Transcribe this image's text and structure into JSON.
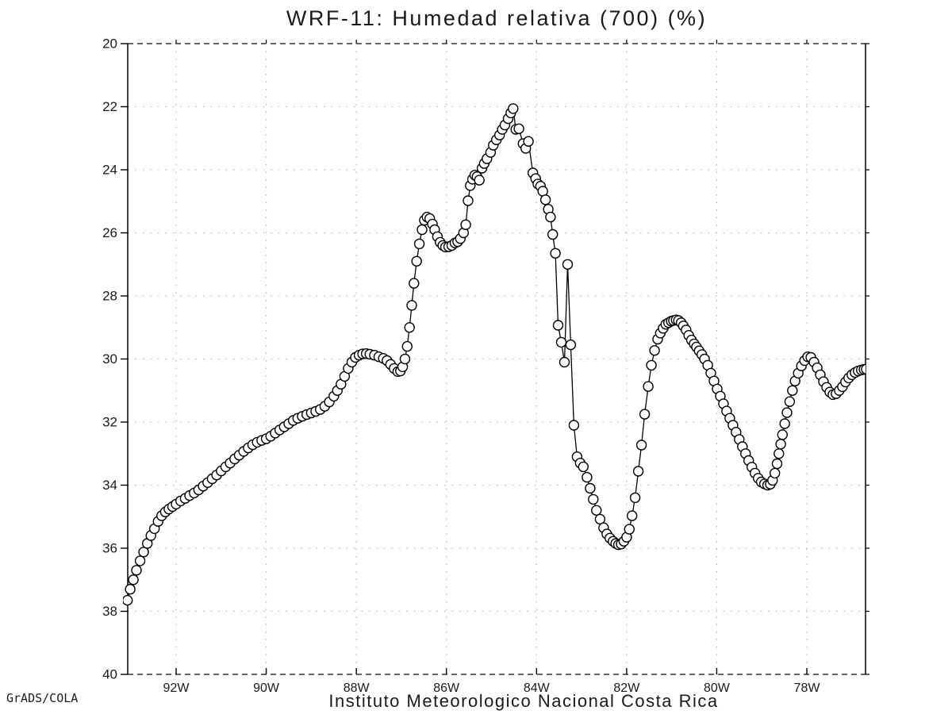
{
  "title": "WRF-11: Humedad relativa (700) (%)",
  "footer": "Instituto Meteorologico Nacional Costa Rica",
  "watermark": "GrADS/COLA",
  "colors": {
    "background": "#ffffff",
    "line": "#000000",
    "marker_fill": "#ffffff",
    "grid_dots": "#b0b0b0",
    "boundary_dash": "#333333",
    "text": "#1a1a1a"
  },
  "chart_data": {
    "type": "line",
    "marker": "open-circle",
    "title": "WRF-11: Humedad relativa (700) (%)",
    "xlabel": "",
    "ylabel": "",
    "x_axis": {
      "unit": "longitude (degrees West)",
      "tick_labels": [
        "92W",
        "90W",
        "88W",
        "86W",
        "84W",
        "82W",
        "80W",
        "78W"
      ],
      "tick_values": [
        92,
        90,
        88,
        86,
        84,
        82,
        80,
        78
      ],
      "range": [
        93.08,
        76.68
      ],
      "direction": "west-to-east"
    },
    "y_axis": {
      "unit": "%",
      "tick_values": [
        20,
        22,
        24,
        26,
        28,
        30,
        32,
        34,
        36,
        38,
        40
      ],
      "range": [
        20,
        40
      ],
      "inverted": true
    },
    "grid": true,
    "legend": "none",
    "series": [
      {
        "name": "Humedad relativa (700 hPa)",
        "points": [
          [
            93.08,
            37.65
          ],
          [
            93.02,
            37.3
          ],
          [
            92.95,
            37.0
          ],
          [
            92.88,
            36.7
          ],
          [
            92.8,
            36.4
          ],
          [
            92.72,
            36.12
          ],
          [
            92.64,
            35.85
          ],
          [
            92.56,
            35.6
          ],
          [
            92.48,
            35.38
          ],
          [
            92.4,
            35.15
          ],
          [
            92.32,
            34.97
          ],
          [
            92.24,
            34.85
          ],
          [
            92.16,
            34.76
          ],
          [
            92.08,
            34.68
          ],
          [
            92.0,
            34.6
          ],
          [
            91.9,
            34.5
          ],
          [
            91.8,
            34.42
          ],
          [
            91.7,
            34.33
          ],
          [
            91.6,
            34.25
          ],
          [
            91.5,
            34.15
          ],
          [
            91.4,
            34.03
          ],
          [
            91.3,
            33.92
          ],
          [
            91.2,
            33.8
          ],
          [
            91.1,
            33.68
          ],
          [
            91.0,
            33.55
          ],
          [
            90.9,
            33.42
          ],
          [
            90.8,
            33.3
          ],
          [
            90.7,
            33.17
          ],
          [
            90.6,
            33.05
          ],
          [
            90.5,
            32.93
          ],
          [
            90.4,
            32.82
          ],
          [
            90.3,
            32.72
          ],
          [
            90.2,
            32.64
          ],
          [
            90.1,
            32.58
          ],
          [
            90.0,
            32.53
          ],
          [
            89.9,
            32.45
          ],
          [
            89.8,
            32.35
          ],
          [
            89.7,
            32.25
          ],
          [
            89.6,
            32.15
          ],
          [
            89.5,
            32.05
          ],
          [
            89.4,
            31.95
          ],
          [
            89.3,
            31.88
          ],
          [
            89.2,
            31.82
          ],
          [
            89.1,
            31.76
          ],
          [
            89.0,
            31.71
          ],
          [
            88.9,
            31.66
          ],
          [
            88.8,
            31.6
          ],
          [
            88.7,
            31.5
          ],
          [
            88.6,
            31.36
          ],
          [
            88.5,
            31.18
          ],
          [
            88.42,
            31.0
          ],
          [
            88.34,
            30.8
          ],
          [
            88.26,
            30.55
          ],
          [
            88.18,
            30.3
          ],
          [
            88.1,
            30.1
          ],
          [
            88.02,
            29.95
          ],
          [
            87.94,
            29.88
          ],
          [
            87.86,
            29.84
          ],
          [
            87.78,
            29.83
          ],
          [
            87.7,
            29.85
          ],
          [
            87.6,
            29.88
          ],
          [
            87.5,
            29.93
          ],
          [
            87.4,
            29.98
          ],
          [
            87.32,
            30.05
          ],
          [
            87.24,
            30.17
          ],
          [
            87.16,
            30.3
          ],
          [
            87.08,
            30.4
          ],
          [
            87.02,
            30.38
          ],
          [
            86.97,
            30.25
          ],
          [
            86.92,
            30.0
          ],
          [
            86.87,
            29.6
          ],
          [
            86.82,
            29.0
          ],
          [
            86.77,
            28.3
          ],
          [
            86.72,
            27.6
          ],
          [
            86.66,
            26.9
          ],
          [
            86.6,
            26.35
          ],
          [
            86.54,
            25.9
          ],
          [
            86.49,
            25.6
          ],
          [
            86.43,
            25.5
          ],
          [
            86.37,
            25.55
          ],
          [
            86.31,
            25.72
          ],
          [
            86.26,
            25.9
          ],
          [
            86.2,
            26.12
          ],
          [
            86.14,
            26.3
          ],
          [
            86.08,
            26.4
          ],
          [
            86.02,
            26.45
          ],
          [
            85.95,
            26.44
          ],
          [
            85.88,
            26.4
          ],
          [
            85.81,
            26.32
          ],
          [
            85.75,
            26.28
          ],
          [
            85.69,
            26.18
          ],
          [
            85.62,
            26.0
          ],
          [
            85.57,
            25.74
          ],
          [
            85.52,
            24.98
          ],
          [
            85.47,
            24.5
          ],
          [
            85.42,
            24.3
          ],
          [
            85.37,
            24.17
          ],
          [
            85.32,
            24.22
          ],
          [
            85.27,
            24.33
          ],
          [
            85.21,
            23.95
          ],
          [
            85.16,
            23.8
          ],
          [
            85.1,
            23.65
          ],
          [
            85.02,
            23.45
          ],
          [
            84.96,
            23.22
          ],
          [
            84.89,
            23.05
          ],
          [
            84.82,
            22.9
          ],
          [
            84.76,
            22.72
          ],
          [
            84.7,
            22.58
          ],
          [
            84.63,
            22.38
          ],
          [
            84.57,
            22.2
          ],
          [
            84.52,
            22.06
          ],
          [
            84.46,
            22.72
          ],
          [
            84.39,
            22.7
          ],
          [
            84.3,
            23.17
          ],
          [
            84.24,
            23.32
          ],
          [
            84.18,
            23.1
          ],
          [
            84.08,
            24.1
          ],
          [
            84.02,
            24.28
          ],
          [
            83.97,
            24.45
          ],
          [
            83.91,
            24.52
          ],
          [
            83.86,
            24.68
          ],
          [
            83.8,
            24.95
          ],
          [
            83.74,
            25.25
          ],
          [
            83.69,
            25.5
          ],
          [
            83.64,
            26.05
          ],
          [
            83.58,
            26.65
          ],
          [
            83.52,
            28.93
          ],
          [
            83.45,
            29.47
          ],
          [
            83.38,
            30.1
          ],
          [
            83.31,
            27.0
          ],
          [
            83.24,
            29.55
          ],
          [
            83.17,
            32.1
          ],
          [
            83.1,
            33.1
          ],
          [
            83.03,
            33.3
          ],
          [
            82.96,
            33.42
          ],
          [
            82.88,
            33.75
          ],
          [
            82.81,
            34.1
          ],
          [
            82.74,
            34.45
          ],
          [
            82.67,
            34.8
          ],
          [
            82.59,
            35.08
          ],
          [
            82.51,
            35.35
          ],
          [
            82.44,
            35.55
          ],
          [
            82.37,
            35.68
          ],
          [
            82.3,
            35.78
          ],
          [
            82.24,
            35.85
          ],
          [
            82.18,
            35.89
          ],
          [
            82.12,
            35.87
          ],
          [
            82.06,
            35.78
          ],
          [
            82.0,
            35.65
          ],
          [
            81.94,
            35.4
          ],
          [
            81.88,
            34.97
          ],
          [
            81.81,
            34.4
          ],
          [
            81.74,
            33.56
          ],
          [
            81.67,
            32.73
          ],
          [
            81.6,
            31.75
          ],
          [
            81.52,
            30.87
          ],
          [
            81.45,
            30.2
          ],
          [
            81.38,
            29.73
          ],
          [
            81.31,
            29.37
          ],
          [
            81.25,
            29.18
          ],
          [
            81.19,
            29.03
          ],
          [
            81.13,
            28.9
          ],
          [
            81.07,
            28.85
          ],
          [
            81.01,
            28.8
          ],
          [
            80.96,
            28.78
          ],
          [
            80.9,
            28.76
          ],
          [
            80.85,
            28.78
          ],
          [
            80.79,
            28.85
          ],
          [
            80.74,
            28.95
          ],
          [
            80.68,
            29.08
          ],
          [
            80.62,
            29.25
          ],
          [
            80.56,
            29.4
          ],
          [
            80.5,
            29.52
          ],
          [
            80.45,
            29.62
          ],
          [
            80.39,
            29.74
          ],
          [
            80.33,
            29.86
          ],
          [
            80.27,
            30.0
          ],
          [
            80.2,
            30.2
          ],
          [
            80.13,
            30.45
          ],
          [
            80.06,
            30.7
          ],
          [
            79.99,
            30.95
          ],
          [
            79.92,
            31.18
          ],
          [
            79.85,
            31.42
          ],
          [
            79.78,
            31.65
          ],
          [
            79.71,
            31.88
          ],
          [
            79.64,
            32.1
          ],
          [
            79.57,
            32.32
          ],
          [
            79.5,
            32.55
          ],
          [
            79.43,
            32.78
          ],
          [
            79.36,
            33.0
          ],
          [
            79.29,
            33.22
          ],
          [
            79.22,
            33.43
          ],
          [
            79.15,
            33.62
          ],
          [
            79.08,
            33.78
          ],
          [
            79.01,
            33.9
          ],
          [
            78.94,
            33.96
          ],
          [
            78.87,
            34.0
          ],
          [
            78.81,
            33.97
          ],
          [
            78.76,
            33.85
          ],
          [
            78.71,
            33.62
          ],
          [
            78.66,
            33.32
          ],
          [
            78.62,
            33.0
          ],
          [
            78.58,
            32.7
          ],
          [
            78.54,
            32.4
          ],
          [
            78.49,
            32.05
          ],
          [
            78.44,
            31.7
          ],
          [
            78.38,
            31.35
          ],
          [
            78.32,
            31.0
          ],
          [
            78.26,
            30.7
          ],
          [
            78.19,
            30.45
          ],
          [
            78.12,
            30.22
          ],
          [
            78.05,
            30.05
          ],
          [
            77.98,
            29.93
          ],
          [
            77.91,
            29.95
          ],
          [
            77.84,
            30.1
          ],
          [
            77.77,
            30.28
          ],
          [
            77.7,
            30.5
          ],
          [
            77.63,
            30.72
          ],
          [
            77.56,
            30.9
          ],
          [
            77.49,
            31.05
          ],
          [
            77.42,
            31.13
          ],
          [
            77.35,
            31.1
          ],
          [
            77.28,
            31.0
          ],
          [
            77.21,
            30.88
          ],
          [
            77.14,
            30.73
          ],
          [
            77.07,
            30.6
          ],
          [
            77.0,
            30.5
          ],
          [
            76.93,
            30.43
          ],
          [
            76.86,
            30.38
          ],
          [
            76.79,
            30.35
          ],
          [
            76.73,
            30.33
          ],
          [
            76.68,
            30.32
          ]
        ]
      }
    ]
  }
}
